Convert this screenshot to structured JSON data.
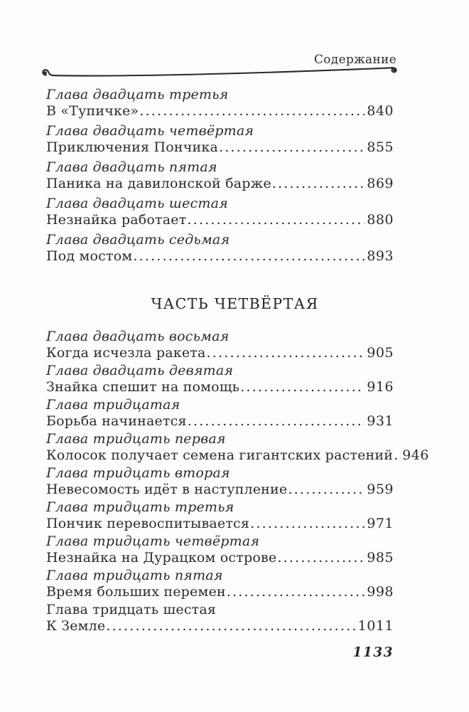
{
  "page": {
    "running_header": "Содержание",
    "folio": "1133"
  },
  "colors": {
    "ink": "#2b2b2b",
    "background": "#fdfdfd"
  },
  "toc": {
    "sections": [
      {
        "heading": "",
        "entries": [
          {
            "chapter": "Глава двадцать третья",
            "italic": true,
            "title": "В «Тупичке»",
            "page": "840"
          },
          {
            "chapter": "Глава двадцать четвёртая",
            "italic": true,
            "title": "Приключения Пончика",
            "page": "855"
          },
          {
            "chapter": "Глава двадцать пятая",
            "italic": true,
            "title": "Паника на давилонской барже",
            "page": "869"
          },
          {
            "chapter": "Глава двадцать шестая",
            "italic": true,
            "title": "Незнайка работает",
            "page": "880"
          },
          {
            "chapter": "Глава двадцать седьмая",
            "italic": true,
            "title": "Под мостом",
            "page": "893"
          }
        ]
      },
      {
        "heading": "ЧАСТЬ ЧЕТВЁРТАЯ",
        "entries": [
          {
            "chapter": "Глава двадцать восьмая",
            "italic": true,
            "title": "Когда исчезла ракета",
            "page": "905"
          },
          {
            "chapter": "Глава двадцать девятая",
            "italic": true,
            "title": "Знайка спешит на помощь",
            "page": "916"
          },
          {
            "chapter": "Глава тридцатая",
            "italic": true,
            "title": "Борьба начинается",
            "page": "931"
          },
          {
            "chapter": "Глава тридцать первая",
            "italic": true,
            "title": "Колосок получает семена гигантских растений",
            "page": "946"
          },
          {
            "chapter": "Глава тридцать вторая",
            "italic": true,
            "title": "Невесомость идёт в наступление",
            "page": "959"
          },
          {
            "chapter": "Глава тридцать третья",
            "italic": true,
            "title": "Пончик перевоспитывается",
            "page": "971"
          },
          {
            "chapter": "Глава тридцать четвёртая",
            "italic": true,
            "title": "Незнайка на Дурацком острове",
            "page": "985"
          },
          {
            "chapter": "Глава тридцать пятая",
            "italic": true,
            "title": "Время больших перемен",
            "page": "998"
          },
          {
            "chapter": "Глава тридцать шестая",
            "italic": false,
            "title": "К Земле",
            "page": "1011"
          }
        ]
      }
    ]
  }
}
